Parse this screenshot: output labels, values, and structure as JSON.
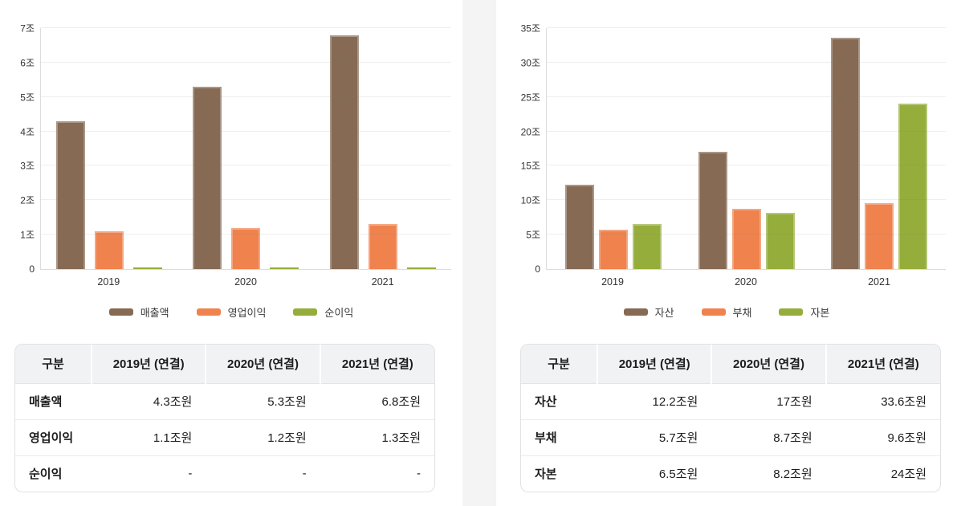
{
  "colors": {
    "brown": "#866a53",
    "orange": "#ef824d",
    "green": "#95ad3b",
    "grid": "#ededee",
    "axis": "#dcdcdd",
    "table_header_bg": "#f1f2f4"
  },
  "chart_data": [
    {
      "type": "bar",
      "title": "",
      "categories": [
        "2019",
        "2020",
        "2021"
      ],
      "series": [
        {
          "key": "revenue",
          "name": "매출액",
          "color": "#866a53",
          "values": [
            4.3,
            5.3,
            6.8
          ]
        },
        {
          "key": "operating-profit",
          "name": "영업이익",
          "color": "#ef824d",
          "values": [
            1.1,
            1.2,
            1.3
          ]
        },
        {
          "key": "net-profit",
          "name": "순이익",
          "color": "#95ad3b",
          "values": [
            0,
            0,
            0
          ]
        }
      ],
      "ylim": [
        0,
        7
      ],
      "ytick_labels": [
        "0",
        "1조",
        "2조",
        "3조",
        "4조",
        "5조",
        "6조",
        "7조"
      ],
      "grid": true,
      "legend_position": "bottom",
      "bar_gap": 12
    },
    {
      "type": "bar",
      "title": "",
      "categories": [
        "2019",
        "2020",
        "2021"
      ],
      "series": [
        {
          "key": "assets",
          "name": "자산",
          "color": "#866a53",
          "values": [
            12.2,
            17,
            33.6
          ]
        },
        {
          "key": "liabilities",
          "name": "부채",
          "color": "#ef824d",
          "values": [
            5.7,
            8.7,
            9.6
          ]
        },
        {
          "key": "equity",
          "name": "자본",
          "color": "#95ad3b",
          "values": [
            6.5,
            8.2,
            24
          ]
        }
      ],
      "ylim": [
        0,
        35
      ],
      "ytick_labels": [
        "0",
        "5조",
        "10조",
        "15조",
        "20조",
        "25조",
        "30조",
        "35조"
      ],
      "grid": true,
      "legend_position": "bottom",
      "bar_gap": 6
    }
  ],
  "tables": [
    {
      "headers": [
        "구분",
        "2019년 (연결)",
        "2020년 (연결)",
        "2021년 (연결)"
      ],
      "rows": [
        {
          "key": "revenue",
          "label": "매출액",
          "values": [
            "4.3조원",
            "5.3조원",
            "6.8조원"
          ]
        },
        {
          "key": "operating-profit",
          "label": "영업이익",
          "values": [
            "1.1조원",
            "1.2조원",
            "1.3조원"
          ]
        },
        {
          "key": "net-profit",
          "label": "순이익",
          "values": [
            "-",
            "-",
            "-"
          ]
        }
      ]
    },
    {
      "headers": [
        "구분",
        "2019년 (연결)",
        "2020년 (연결)",
        "2021년 (연결)"
      ],
      "rows": [
        {
          "key": "assets",
          "label": "자산",
          "values": [
            "12.2조원",
            "17조원",
            "33.6조원"
          ]
        },
        {
          "key": "liabilities",
          "label": "부채",
          "values": [
            "5.7조원",
            "8.7조원",
            "9.6조원"
          ]
        },
        {
          "key": "equity",
          "label": "자본",
          "values": [
            "6.5조원",
            "8.2조원",
            "24조원"
          ]
        }
      ]
    }
  ]
}
